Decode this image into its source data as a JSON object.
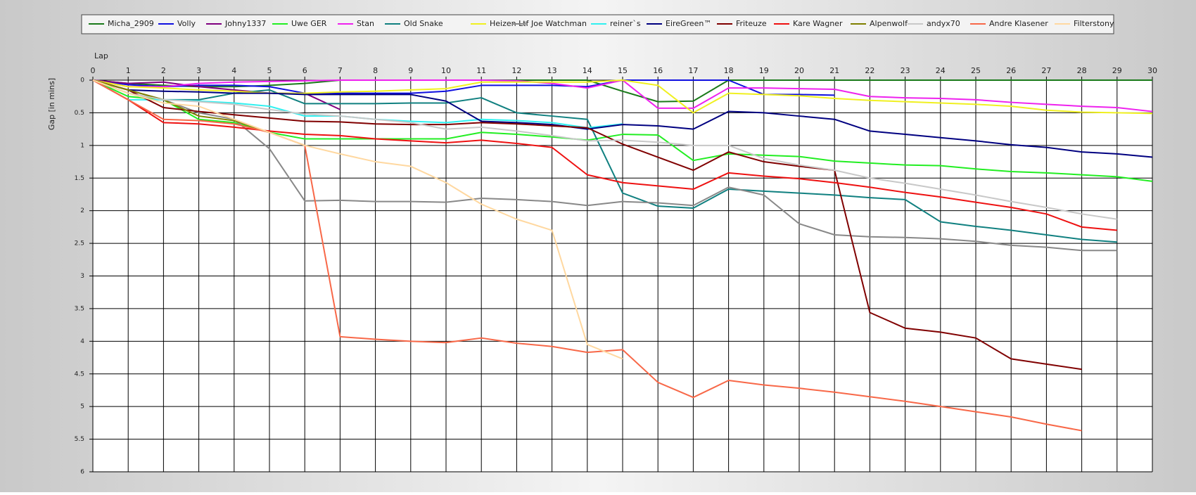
{
  "chart_data": {
    "type": "line",
    "x_label": "Lap",
    "y_label": "Gap [in mins]",
    "x": [
      0,
      1,
      2,
      3,
      4,
      5,
      6,
      7,
      8,
      9,
      10,
      11,
      12,
      13,
      14,
      15,
      16,
      17,
      18,
      19,
      20,
      21,
      22,
      23,
      24,
      25,
      26,
      27,
      28,
      29,
      30
    ],
    "xlim": [
      0,
      30
    ],
    "xticks": [
      0,
      1,
      2,
      3,
      4,
      5,
      6,
      7,
      8,
      9,
      10,
      11,
      12,
      13,
      14,
      15,
      16,
      17,
      18,
      19,
      20,
      21,
      22,
      23,
      24,
      25,
      26,
      27,
      28,
      29,
      30
    ],
    "ylim": [
      6,
      0
    ],
    "yticks": [
      0,
      0.5,
      1,
      1.5,
      2,
      2.5,
      3,
      3.5,
      4,
      4.5,
      5,
      5.5,
      6
    ],
    "grid": true,
    "legend": "top",
    "series": [
      {
        "name": "Micha_2909",
        "color": "#1a7a1a",
        "values": [
          0,
          0.05,
          0.08,
          0.1,
          0.1,
          0.08,
          0.05,
          0,
          0,
          0,
          0,
          0,
          0,
          0,
          0,
          0.17,
          0.33,
          0.32,
          0,
          0,
          0,
          0,
          0,
          0,
          0,
          0,
          0,
          0,
          0,
          0,
          0
        ]
      },
      {
        "name": "Volly",
        "color": "#1010e0",
        "values": [
          0,
          0.07,
          0.1,
          0.08,
          0.08,
          0.1,
          0.2,
          0.2,
          0.2,
          0.2,
          0.17,
          0.08,
          0.08,
          0.08,
          0.1,
          0,
          0,
          0,
          0,
          0.22,
          0.22,
          0.23,
          null,
          null,
          null,
          null,
          null,
          null,
          null,
          null,
          null
        ]
      },
      {
        "name": "Johny1337",
        "color": "#800080",
        "values": [
          0,
          0.05,
          0.03,
          0.1,
          0.15,
          0.2,
          0.2,
          0.45,
          null,
          null,
          null,
          null,
          null,
          null,
          null,
          null,
          null,
          null,
          null,
          null,
          null,
          null,
          null,
          null,
          null,
          null,
          null,
          null,
          null,
          null,
          null
        ]
      },
      {
        "name": "Uwe GER",
        "color": "#22ee22",
        "values": [
          0,
          0.25,
          0.3,
          0.6,
          0.65,
          0.8,
          0.9,
          0.9,
          0.9,
          0.9,
          0.9,
          0.8,
          0.83,
          0.87,
          0.92,
          0.83,
          0.84,
          1.23,
          1.13,
          1.15,
          1.17,
          1.24,
          1.27,
          1.3,
          1.31,
          1.36,
          1.4,
          1.42,
          1.45,
          1.48,
          1.55
        ]
      },
      {
        "name": "Stan",
        "color": "#ee22ee",
        "values": [
          0,
          0.1,
          0.1,
          0.05,
          0.03,
          0.02,
          0.01,
          0,
          0,
          0,
          0,
          0,
          0.01,
          0.05,
          0.12,
          0,
          0.43,
          0.43,
          0.12,
          0.12,
          0.13,
          0.14,
          0.25,
          0.27,
          0.28,
          0.3,
          0.34,
          0.37,
          0.4,
          0.42,
          0.48
        ]
      },
      {
        "name": "Old Snake",
        "color": "#108080",
        "values": [
          0,
          0.2,
          0.3,
          0.3,
          0.2,
          0.15,
          0.36,
          0.36,
          0.36,
          0.35,
          0.35,
          0.27,
          0.5,
          0.55,
          0.6,
          1.73,
          1.93,
          1.96,
          1.67,
          1.7,
          1.73,
          1.76,
          1.8,
          1.83,
          2.17,
          2.24,
          2.3,
          2.37,
          2.44,
          2.48,
          null
        ]
      },
      {
        "name": "Heizen Ltf",
        "color": "#f0f020",
        "values": [
          0,
          0.1,
          0.12,
          0.15,
          0.17,
          0.2,
          0.2,
          0.18,
          0.17,
          0.15,
          0.13,
          0.03,
          0.03,
          0.03,
          0.03,
          0,
          0.08,
          0.5,
          0.2,
          0.22,
          0.24,
          0.28,
          0.31,
          0.33,
          0.35,
          0.37,
          0.4,
          0.46,
          0.49,
          0.5,
          0.51
        ]
      },
      {
        "name": "Joe Watchman",
        "color": "#888888",
        "values": [
          0,
          0.15,
          0.3,
          0.5,
          0.6,
          1.05,
          1.85,
          1.84,
          1.86,
          1.86,
          1.87,
          1.81,
          1.83,
          1.86,
          1.92,
          1.86,
          1.88,
          1.92,
          1.64,
          1.76,
          2.2,
          2.37,
          2.4,
          2.41,
          2.43,
          2.47,
          2.53,
          2.56,
          2.61,
          2.61,
          null
        ]
      },
      {
        "name": "reiner`s",
        "color": "#30f0f0",
        "values": [
          0,
          0.3,
          0.3,
          0.32,
          0.35,
          0.4,
          0.55,
          0.55,
          0.6,
          0.63,
          0.65,
          0.6,
          0.62,
          0.65,
          0.73,
          0.67,
          null,
          null,
          null,
          null,
          null,
          null,
          null,
          null,
          null,
          null,
          null,
          null,
          null,
          null,
          null
        ]
      },
      {
        "name": "EireGreen™",
        "color": "#000080",
        "values": [
          0,
          0.15,
          0.17,
          0.18,
          0.2,
          0.2,
          0.22,
          0.22,
          0.22,
          0.22,
          0.32,
          0.63,
          0.65,
          0.68,
          0.75,
          0.68,
          0.7,
          0.75,
          0.48,
          0.5,
          0.55,
          0.6,
          0.78,
          0.83,
          0.88,
          0.93,
          0.99,
          1.03,
          1.1,
          1.13,
          1.18
        ]
      },
      {
        "name": "Friteuze",
        "color": "#800000",
        "values": [
          0,
          0.15,
          0.42,
          0.48,
          0.53,
          0.58,
          0.63,
          0.64,
          0.67,
          0.68,
          0.68,
          0.65,
          0.67,
          0.7,
          0.73,
          0.98,
          1.18,
          1.38,
          1.1,
          1.25,
          1.32,
          1.38,
          3.56,
          3.8,
          3.86,
          3.95,
          4.27,
          4.35,
          4.43,
          null,
          null
        ]
      },
      {
        "name": "Kare Wagner",
        "color": "#ee1111",
        "values": [
          0,
          0.3,
          0.65,
          0.67,
          0.72,
          0.78,
          0.83,
          0.85,
          0.9,
          0.93,
          0.96,
          0.92,
          0.97,
          1.03,
          1.45,
          1.57,
          1.62,
          1.67,
          1.42,
          1.47,
          1.51,
          1.57,
          1.64,
          1.72,
          1.79,
          1.87,
          1.95,
          2.05,
          2.25,
          2.3,
          null
        ]
      },
      {
        "name": "Alpenwolf",
        "color": "#808000",
        "values": [
          0,
          0.15,
          0.3,
          0.55,
          0.62,
          0.8,
          null,
          null,
          null,
          null,
          null,
          null,
          null,
          null,
          null,
          null,
          null,
          null,
          null,
          null,
          null,
          null,
          null,
          null,
          null,
          null,
          null,
          null,
          null,
          null,
          null
        ]
      },
      {
        "name": "andyx70",
        "color": "#c8c8c8",
        "values": [
          0,
          0.2,
          0.3,
          0.33,
          0.37,
          0.45,
          0.52,
          0.55,
          0.6,
          0.65,
          0.75,
          0.72,
          0.78,
          0.85,
          0.93,
          0.92,
          0.95,
          1,
          1,
          1.2,
          1.3,
          1.38,
          1.5,
          1.58,
          1.67,
          1.76,
          1.86,
          1.95,
          2.05,
          2.13,
          null
        ]
      },
      {
        "name": "Andre Klasener",
        "color": "#f86848",
        "values": [
          0,
          0.3,
          0.6,
          0.62,
          0.67,
          0.8,
          1,
          3.93,
          3.97,
          4,
          4.02,
          3.95,
          4.03,
          4.08,
          4.17,
          4.13,
          4.63,
          4.86,
          4.6,
          4.67,
          4.72,
          4.78,
          4.85,
          4.92,
          5,
          5.08,
          5.16,
          5.27,
          5.37,
          null,
          null
        ]
      },
      {
        "name": "Filterstony",
        "color": "#ffd8a0",
        "values": [
          0,
          0.2,
          0.35,
          0.4,
          0.6,
          0.8,
          1,
          1.13,
          1.25,
          1.32,
          1.57,
          1.9,
          2.13,
          2.3,
          4.05,
          4.27,
          null,
          null,
          null,
          null,
          null,
          null,
          null,
          null,
          null,
          null,
          null,
          null,
          null,
          null,
          null
        ]
      }
    ]
  }
}
